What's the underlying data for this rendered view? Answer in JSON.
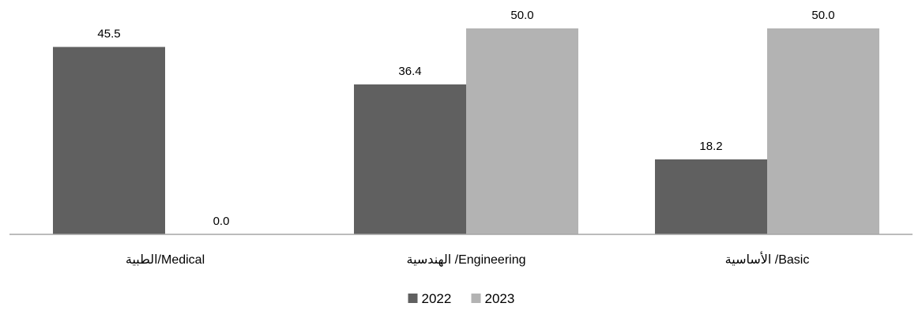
{
  "chart_data": {
    "type": "bar",
    "categories": [
      "الطبية/Medical",
      "الهندسية /Engineering",
      "الأساسية /Basic"
    ],
    "series": [
      {
        "name": "2022",
        "values": [
          45.5,
          36.4,
          18.2
        ],
        "labels": [
          "45.5",
          "36.4",
          "18.2"
        ],
        "color": "#606060"
      },
      {
        "name": "2023",
        "values": [
          0.0,
          50.0,
          50.0
        ],
        "labels": [
          "0.0",
          "50.0",
          "50.0"
        ],
        "color": "#b3b3b3"
      }
    ],
    "ylim": [
      0,
      50
    ],
    "grid": false,
    "legend_position": "bottom",
    "axis_color": "#a6a6a6"
  }
}
